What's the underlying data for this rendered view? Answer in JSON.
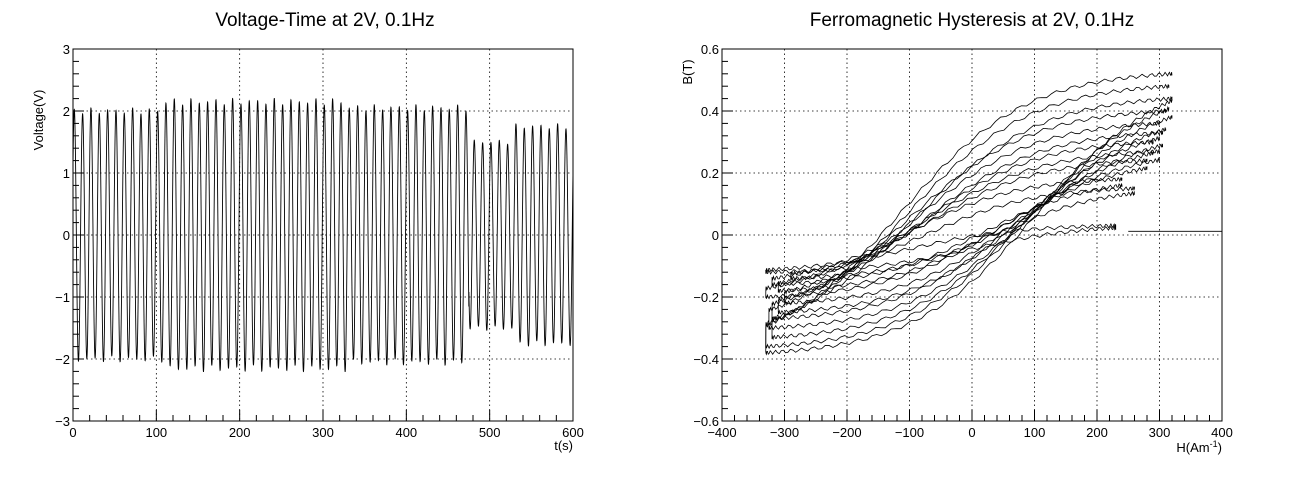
{
  "chart_data": [
    {
      "type": "line",
      "title": "Voltage-Time at 2V, 0.1Hz",
      "xlabel": "t(s)",
      "ylabel": "Voltage(V)",
      "xlim": [
        0,
        600
      ],
      "ylim": [
        -3,
        3
      ],
      "x_ticks": [
        "0",
        "100",
        "200",
        "300",
        "400",
        "500",
        "600"
      ],
      "y_ticks": [
        "−3",
        "−2",
        "−1",
        "0",
        "1",
        "2",
        "3"
      ],
      "grid": true,
      "series": [
        {
          "style": "sinusoid",
          "frequency_hz": 0.1,
          "segments": [
            {
              "t_start": 0,
              "t_end": 110,
              "amplitude": 2.0
            },
            {
              "t_start": 110,
              "t_end": 330,
              "amplitude": 2.15
            },
            {
              "t_start": 330,
              "t_end": 475,
              "amplitude": 2.05
            },
            {
              "t_start": 475,
              "t_end": 530,
              "amplitude": 1.5
            },
            {
              "t_start": 530,
              "t_end": 600,
              "amplitude": 1.75
            }
          ]
        }
      ]
    },
    {
      "type": "line",
      "title": "Ferromagnetic Hysteresis at 2V, 0.1Hz",
      "xlabel": "H(Am",
      "xlabel_sup": "-1",
      "xlabel_tail": ")",
      "ylabel": "B(T)",
      "xlim": [
        -400,
        400
      ],
      "ylim": [
        -0.6,
        0.6
      ],
      "x_ticks": [
        "−400",
        "−300",
        "−200",
        "−100",
        "0",
        "100",
        "200",
        "300",
        "400"
      ],
      "y_ticks": [
        "−0.6",
        "−0.4",
        "−0.2",
        "0",
        "0.2",
        "0.4",
        "0.6"
      ],
      "grid": true,
      "series": [
        {
          "style": "hysteresis-loops",
          "loops": [
            {
              "h_min": -330,
              "h_max": 320,
              "b_min": -0.38,
              "b_max": 0.52,
              "coercive_h": 110
            },
            {
              "h_min": -330,
              "h_max": 315,
              "b_min": -0.36,
              "b_max": 0.48,
              "coercive_h": 100
            },
            {
              "h_min": -320,
              "h_max": 320,
              "b_min": -0.33,
              "b_max": 0.44,
              "coercive_h": 90
            },
            {
              "h_min": -325,
              "h_max": 310,
              "b_min": -0.3,
              "b_max": 0.4,
              "coercive_h": 95
            },
            {
              "h_min": -320,
              "h_max": 300,
              "b_min": -0.27,
              "b_max": 0.36,
              "coercive_h": 85
            },
            {
              "h_min": -310,
              "h_max": 305,
              "b_min": -0.25,
              "b_max": 0.33,
              "coercive_h": 80
            },
            {
              "h_min": -300,
              "h_max": 290,
              "b_min": -0.22,
              "b_max": 0.3,
              "coercive_h": 75
            },
            {
              "h_min": -330,
              "h_max": 300,
              "b_min": -0.2,
              "b_max": 0.27,
              "coercive_h": 70
            },
            {
              "h_min": -310,
              "h_max": 280,
              "b_min": -0.18,
              "b_max": 0.24,
              "coercive_h": 65
            },
            {
              "h_min": -320,
              "h_max": 240,
              "b_min": -0.16,
              "b_max": 0.18,
              "coercive_h": 60
            },
            {
              "h_min": -290,
              "h_max": 260,
              "b_min": -0.14,
              "b_max": 0.15,
              "coercive_h": 55
            },
            {
              "h_min": -330,
              "h_max": 230,
              "b_min": -0.12,
              "b_max": 0.03,
              "coercive_h": 50
            }
          ],
          "tail": {
            "h_start": 250,
            "h_end": 400,
            "b": 0.012
          }
        }
      ]
    }
  ]
}
